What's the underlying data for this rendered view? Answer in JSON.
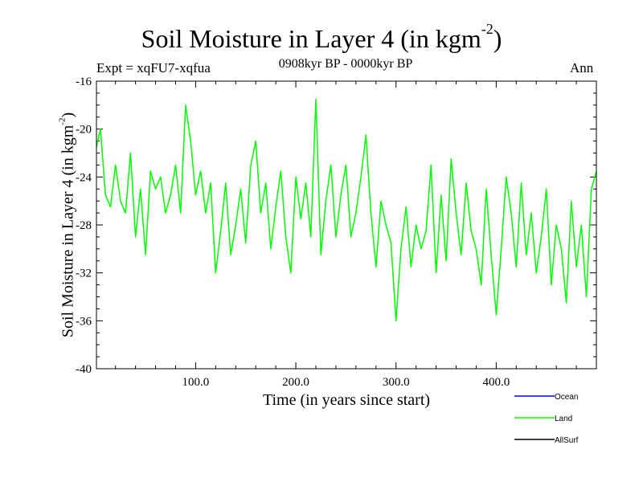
{
  "header": {
    "title": "Soil Moisture in Layer 4 (in kgm",
    "title_exponent": "-2",
    "title_close": ")",
    "experiment": "Expt = xqFU7-xqfua",
    "period": "0908kyr BP - 0000kyr BP",
    "season": "Ann"
  },
  "chart_data": {
    "type": "line",
    "xlabel": "Time (in years since start)",
    "ylabel": "Soil Moisture in Layer 4 (in kgm",
    "ylabel_exponent": "-2",
    "ylabel_close": ")",
    "xlim": [
      1,
      500
    ],
    "ylim": [
      -40,
      -16
    ],
    "x_ticks": [
      100,
      200,
      300,
      400
    ],
    "x_tick_labels": [
      "100.0",
      "200.0",
      "300.0",
      "400.0"
    ],
    "y_ticks": [
      -16,
      -20,
      -24,
      -28,
      -32,
      -36,
      -40
    ],
    "y_tick_labels": [
      "-16",
      "-20",
      "-24",
      "-28",
      "-32",
      "-36",
      "-40"
    ],
    "legend": [
      {
        "name": "Ocean",
        "color": "#0000ff"
      },
      {
        "name": "Land",
        "color": "#00ff00"
      },
      {
        "name": "AllSurf",
        "color": "#000000"
      }
    ],
    "legend_position": "bottom-right",
    "series": [
      {
        "name": "Land",
        "color": "#00ff00",
        "x": [
          1,
          5,
          10,
          15,
          20,
          25,
          30,
          35,
          40,
          45,
          50,
          55,
          60,
          65,
          70,
          75,
          80,
          85,
          90,
          95,
          100,
          105,
          110,
          115,
          120,
          125,
          130,
          135,
          140,
          145,
          150,
          155,
          160,
          165,
          170,
          175,
          180,
          185,
          190,
          195,
          200,
          205,
          210,
          215,
          220,
          225,
          230,
          235,
          240,
          245,
          250,
          255,
          260,
          265,
          270,
          275,
          280,
          285,
          290,
          295,
          300,
          305,
          310,
          315,
          320,
          325,
          330,
          335,
          340,
          345,
          350,
          355,
          360,
          365,
          370,
          375,
          380,
          385,
          390,
          395,
          400,
          405,
          410,
          415,
          420,
          425,
          430,
          435,
          440,
          445,
          450,
          455,
          460,
          465,
          470,
          475,
          480,
          485,
          490,
          495,
          500
        ],
        "values": [
          -21.5,
          -20.0,
          -25.5,
          -26.5,
          -23.0,
          -26.0,
          -27.0,
          -22.0,
          -29.0,
          -25.0,
          -30.5,
          -23.5,
          -25.0,
          -24.0,
          -27.0,
          -25.5,
          -23.0,
          -27.0,
          -18.0,
          -21.0,
          -25.5,
          -23.5,
          -27.0,
          -24.5,
          -32.0,
          -28.5,
          -24.5,
          -30.5,
          -28.0,
          -25.0,
          -29.5,
          -23.0,
          -21.0,
          -27.0,
          -24.5,
          -30.0,
          -26.5,
          -23.5,
          -29.0,
          -32.0,
          -24.0,
          -27.5,
          -24.5,
          -29.0,
          -17.5,
          -30.5,
          -26.0,
          -23.0,
          -29.0,
          -25.5,
          -23.0,
          -29.0,
          -27.0,
          -24.0,
          -20.5,
          -27.0,
          -31.5,
          -26.0,
          -28.0,
          -29.5,
          -36.0,
          -30.0,
          -26.5,
          -31.5,
          -28.0,
          -30.0,
          -28.5,
          -23.0,
          -32.0,
          -25.5,
          -31.0,
          -22.5,
          -27.0,
          -30.5,
          -24.5,
          -28.5,
          -30.0,
          -33.0,
          -25.0,
          -30.5,
          -35.5,
          -30.0,
          -24.0,
          -27.0,
          -31.5,
          -24.5,
          -30.5,
          -27.0,
          -32.0,
          -29.0,
          -25.0,
          -33.0,
          -28.0,
          -30.0,
          -34.5,
          -26.0,
          -31.5,
          -28.0,
          -34.0,
          -25.0,
          -23.5
        ]
      }
    ]
  }
}
